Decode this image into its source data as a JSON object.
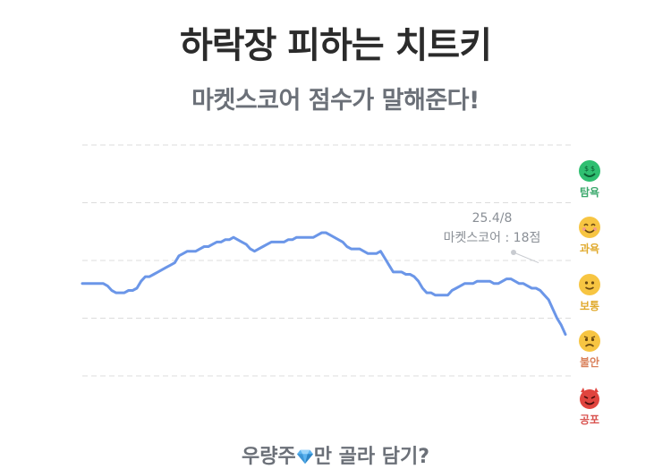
{
  "header": {
    "title": "하락장 피하는 치트키",
    "subtitle": "마켓스코어 점수가 말해준다!"
  },
  "footer": {
    "text_before": "우량주",
    "gem_icon": "gem-icon",
    "text_after": "만 골라 담기?"
  },
  "tooltip": {
    "date": "25.4/8",
    "label": "마켓스코어 : 18점"
  },
  "moods": [
    {
      "label": "탐욕",
      "icon": "greedy-face-icon",
      "color": "#3aa86b",
      "face": "#2fbf71"
    },
    {
      "label": "과욕",
      "icon": "smiling-face-icon",
      "color": "#e0a92b",
      "face": "#f7c542"
    },
    {
      "label": "보통",
      "icon": "slight-smile-icon",
      "color": "#e0a92b",
      "face": "#f7c542"
    },
    {
      "label": "불안",
      "icon": "worried-face-icon",
      "color": "#d9805a",
      "face": "#f7c542"
    },
    {
      "label": "공포",
      "icon": "devil-face-icon",
      "color": "#d9534f",
      "face": "#e0443e"
    }
  ],
  "chart_data": {
    "type": "line",
    "title": "",
    "xlabel": "",
    "ylabel": "",
    "grid": true,
    "ylim": [
      0,
      100
    ],
    "line_color": "#6b96e8",
    "annotation": {
      "x": 76,
      "y": 18,
      "text": "25.4/8 마켓스코어 : 18점"
    },
    "series": [
      {
        "values": [
          40,
          40,
          40,
          40,
          40,
          40,
          39,
          37,
          36,
          36,
          36,
          37,
          37,
          38,
          41,
          43,
          43,
          44,
          45,
          46,
          47,
          48,
          49,
          52,
          53,
          54,
          54,
          54,
          55,
          56,
          56,
          57,
          58,
          58,
          59,
          59,
          60,
          59,
          58,
          57,
          55,
          54,
          55,
          56,
          57,
          58,
          58,
          58,
          58,
          59,
          59,
          60,
          60,
          60,
          60,
          60,
          61,
          62,
          62,
          61,
          60,
          59,
          58,
          56,
          55,
          55,
          55,
          54,
          53,
          53,
          53,
          54,
          51,
          48,
          45,
          45,
          45,
          44,
          44,
          43,
          41,
          38,
          36,
          36,
          35,
          35,
          35,
          35,
          37,
          38,
          39,
          40,
          40,
          40,
          41,
          41,
          41,
          41,
          40,
          40,
          41,
          42,
          42,
          41,
          40,
          40,
          39,
          38,
          38,
          37,
          35,
          33,
          29,
          25,
          22,
          18
        ]
      }
    ]
  }
}
